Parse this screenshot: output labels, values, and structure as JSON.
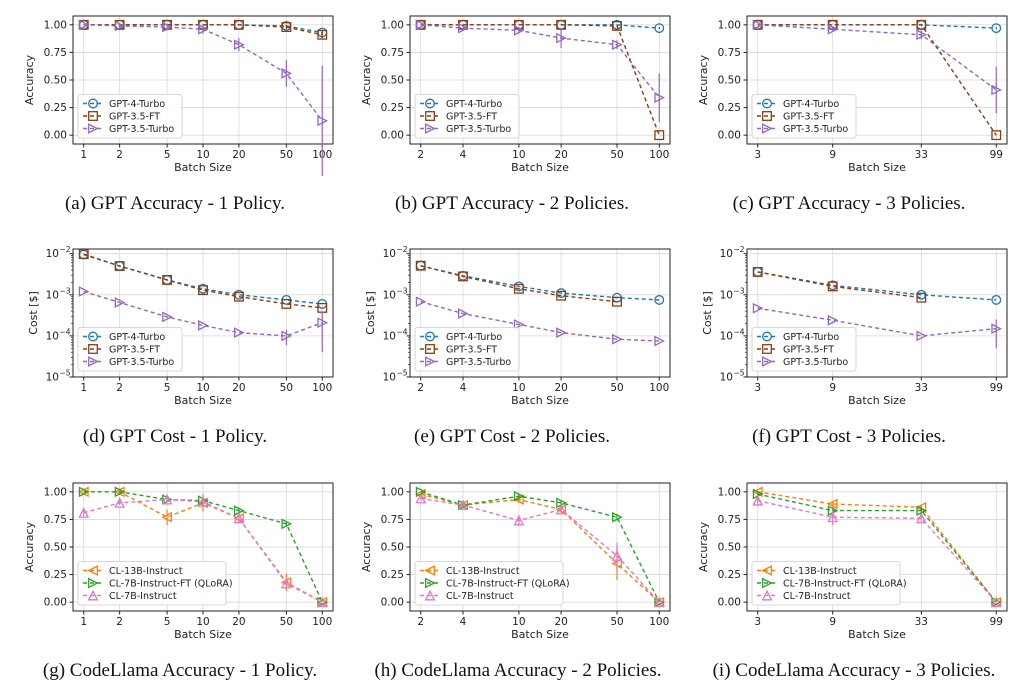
{
  "colors": {
    "gpt4": "#1f77b4",
    "gpt35ft": "#8c3d0f",
    "gpt35turbo": "#9467bd",
    "cl13b": "#ff7f0e",
    "cl7bft": "#2ca02c",
    "cl7b": "#e377c2"
  },
  "chart_data": [
    {
      "type": "line",
      "id": "a",
      "caption": "(a) GPT Accuracy - 1 Policy.",
      "xlabel": "Batch Size",
      "ylabel": "Accuracy",
      "x": [
        1,
        2,
        5,
        10,
        20,
        50,
        100
      ],
      "xticks": [
        "1",
        "2",
        "5",
        "10",
        "20",
        "50",
        "100"
      ],
      "yscale": "linear",
      "ylim": [
        -0.08,
        1.08
      ],
      "yticks": [
        "0.00",
        "0.25",
        "0.50",
        "0.75",
        "1.00"
      ],
      "grid": true,
      "legend_position": "lower-left",
      "series": [
        {
          "name": "GPT-4-Turbo",
          "color": "#1f77b4",
          "marker": "circle",
          "values": [
            1.0,
            1.0,
            1.0,
            1.0,
            1.0,
            0.99,
            0.93
          ],
          "errors": [
            0,
            0,
            0,
            0,
            0,
            0.01,
            0.02
          ]
        },
        {
          "name": "GPT-3.5-FT",
          "color": "#8c3d0f",
          "marker": "square",
          "values": [
            1.0,
            1.0,
            1.0,
            1.0,
            1.0,
            0.98,
            0.91
          ],
          "errors": [
            0,
            0,
            0,
            0,
            0,
            0.02,
            0.03
          ]
        },
        {
          "name": "GPT-3.5-Turbo",
          "color": "#9467bd",
          "marker": "triangle-right",
          "values": [
            1.0,
            0.99,
            0.98,
            0.96,
            0.82,
            0.56,
            0.13
          ],
          "errors": [
            0,
            0.02,
            0.03,
            0.04,
            0.06,
            0.12,
            0.5
          ]
        }
      ]
    },
    {
      "type": "line",
      "id": "b",
      "caption": "(b) GPT Accuracy - 2 Policies.",
      "xlabel": "Batch Size",
      "ylabel": "Accuracy",
      "x": [
        2,
        4,
        10,
        20,
        50,
        100
      ],
      "xticks": [
        "2",
        "4",
        "10",
        "20",
        "50",
        "100"
      ],
      "yscale": "linear",
      "ylim": [
        -0.08,
        1.08
      ],
      "yticks": [
        "0.00",
        "0.25",
        "0.50",
        "0.75",
        "1.00"
      ],
      "grid": true,
      "legend_position": "lower-left",
      "series": [
        {
          "name": "GPT-4-Turbo",
          "color": "#1f77b4",
          "marker": "circle",
          "values": [
            1.0,
            1.0,
            1.0,
            1.0,
            1.0,
            0.97
          ],
          "errors": [
            0,
            0,
            0,
            0,
            0,
            0.01
          ]
        },
        {
          "name": "GPT-3.5-FT",
          "color": "#8c3d0f",
          "marker": "square",
          "values": [
            1.0,
            1.0,
            1.0,
            1.0,
            0.99,
            0.0
          ],
          "errors": [
            0,
            0,
            0,
            0,
            0.01,
            0
          ]
        },
        {
          "name": "GPT-3.5-Turbo",
          "color": "#9467bd",
          "marker": "triangle-right",
          "values": [
            1.0,
            0.97,
            0.95,
            0.88,
            0.82,
            0.34
          ],
          "errors": [
            0,
            0.02,
            0.03,
            0.09,
            0.04,
            0.22
          ]
        }
      ]
    },
    {
      "type": "line",
      "id": "c",
      "caption": "(c) GPT Accuracy - 3 Policies.",
      "xlabel": "Batch Size",
      "ylabel": "Accuracy",
      "x": [
        3,
        9,
        33,
        99
      ],
      "xticks": [
        "3",
        "9",
        "33",
        "99"
      ],
      "yscale": "linear",
      "ylim": [
        -0.08,
        1.08
      ],
      "yticks": [
        "0.00",
        "0.25",
        "0.50",
        "0.75",
        "1.00"
      ],
      "grid": true,
      "legend_position": "lower-left",
      "series": [
        {
          "name": "GPT-4-Turbo",
          "color": "#1f77b4",
          "marker": "circle",
          "values": [
            1.0,
            1.0,
            1.0,
            0.97
          ],
          "errors": [
            0,
            0,
            0,
            0.01
          ]
        },
        {
          "name": "GPT-3.5-FT",
          "color": "#8c3d0f",
          "marker": "square",
          "values": [
            1.0,
            1.0,
            1.0,
            0.0
          ],
          "errors": [
            0,
            0,
            0,
            0
          ]
        },
        {
          "name": "GPT-3.5-Turbo",
          "color": "#9467bd",
          "marker": "triangle-right",
          "values": [
            1.0,
            0.96,
            0.91,
            0.41
          ],
          "errors": [
            0,
            0.02,
            0.04,
            0.21
          ]
        }
      ]
    },
    {
      "type": "line",
      "id": "d",
      "caption": "(d) GPT Cost - 1 Policy.",
      "xlabel": "Batch Size",
      "ylabel": "Cost [$]",
      "x": [
        1,
        2,
        5,
        10,
        20,
        50,
        100
      ],
      "xticks": [
        "1",
        "2",
        "5",
        "10",
        "20",
        "50",
        "100"
      ],
      "yscale": "log",
      "ylim": [
        1e-05,
        0.013
      ],
      "yticks_exp": [
        -5,
        -4,
        -3,
        -2
      ],
      "grid": true,
      "legend_position": "lower-left",
      "series": [
        {
          "name": "GPT-4-Turbo",
          "color": "#1f77b4",
          "marker": "circle",
          "values": [
            0.0095,
            0.005,
            0.0023,
            0.0014,
            0.001,
            0.00075,
            0.0006
          ],
          "errors": [
            0,
            0,
            0,
            0,
            0,
            0,
            0
          ]
        },
        {
          "name": "GPT-3.5-FT",
          "color": "#8c3d0f",
          "marker": "square",
          "values": [
            0.0098,
            0.005,
            0.0023,
            0.0013,
            0.0009,
            0.0006,
            0.00048
          ],
          "errors": [
            0,
            0,
            0,
            0,
            0,
            0,
            0
          ]
        },
        {
          "name": "GPT-3.5-Turbo",
          "color": "#9467bd",
          "marker": "triangle-right",
          "values": [
            0.0012,
            0.00065,
            0.00029,
            0.00018,
            0.00012,
            0.0001,
            0.00021
          ],
          "errors": [
            0,
            0,
            0,
            0,
            0,
            4e-05,
            0.00017
          ]
        }
      ]
    },
    {
      "type": "line",
      "id": "e",
      "caption": "(e) GPT Cost - 2 Policies.",
      "xlabel": "Batch Size",
      "ylabel": "Cost [$]",
      "x": [
        2,
        4,
        10,
        20,
        50,
        100
      ],
      "xticks": [
        "2",
        "4",
        "10",
        "20",
        "50",
        "100"
      ],
      "yscale": "log",
      "ylim": [
        1e-05,
        0.013
      ],
      "yticks_exp": [
        -5,
        -4,
        -3,
        -2
      ],
      "grid": true,
      "legend_position": "lower-left",
      "series": [
        {
          "name": "GPT-4-Turbo",
          "color": "#1f77b4",
          "marker": "circle",
          "values": [
            0.0051,
            0.0029,
            0.0016,
            0.0011,
            0.00085,
            0.00075
          ],
          "errors": [
            0,
            0,
            0,
            0,
            0,
            0
          ]
        },
        {
          "name": "GPT-3.5-FT",
          "color": "#8c3d0f",
          "marker": "square",
          "values": [
            0.0051,
            0.0028,
            0.0014,
            0.00095,
            0.00068,
            0
          ],
          "errors": [
            0,
            0,
            0,
            0,
            0,
            0
          ]
        },
        {
          "name": "GPT-3.5-Turbo",
          "color": "#9467bd",
          "marker": "triangle-right",
          "values": [
            0.00068,
            0.00035,
            0.00019,
            0.00012,
            8.3e-05,
            7.5e-05
          ],
          "errors": [
            0,
            0,
            0,
            0,
            0,
            0
          ]
        }
      ]
    },
    {
      "type": "line",
      "id": "f",
      "caption": "(f) GPT Cost - 3 Policies.",
      "xlabel": "Batch Size",
      "ylabel": "Cost [$]",
      "x": [
        3,
        9,
        33,
        99
      ],
      "xticks": [
        "3",
        "9",
        "33",
        "99"
      ],
      "yscale": "log",
      "ylim": [
        1e-05,
        0.013
      ],
      "yticks_exp": [
        -5,
        -4,
        -3,
        -2
      ],
      "grid": true,
      "legend_position": "lower-left",
      "series": [
        {
          "name": "GPT-4-Turbo",
          "color": "#1f77b4",
          "marker": "circle",
          "values": [
            0.0036,
            0.0017,
            0.001,
            0.00075
          ],
          "errors": [
            0,
            0,
            0,
            0
          ]
        },
        {
          "name": "GPT-3.5-FT",
          "color": "#8c3d0f",
          "marker": "square",
          "values": [
            0.0036,
            0.0016,
            0.00085,
            0
          ],
          "errors": [
            0,
            0,
            0,
            0
          ]
        },
        {
          "name": "GPT-3.5-Turbo",
          "color": "#9467bd",
          "marker": "triangle-right",
          "values": [
            0.00047,
            0.00024,
            0.0001,
            0.00015
          ],
          "errors": [
            0,
            0,
            0,
            0.0001
          ]
        }
      ]
    },
    {
      "type": "line",
      "id": "g",
      "caption": "(g) CodeLlama Accuracy - 1 Policy.",
      "xlabel": "Batch Size",
      "ylabel": "Accuracy",
      "x": [
        1,
        2,
        5,
        10,
        20,
        50,
        100
      ],
      "xticks": [
        "1",
        "2",
        "5",
        "10",
        "20",
        "50",
        "100"
      ],
      "yscale": "linear",
      "ylim": [
        -0.08,
        1.08
      ],
      "yticks": [
        "0.00",
        "0.25",
        "0.50",
        "0.75",
        "1.00"
      ],
      "grid": true,
      "legend_position": "lower-left",
      "series": [
        {
          "name": "CL-13B-Instruct",
          "color": "#ff7f0e",
          "marker": "triangle-left",
          "values": [
            1.0,
            1.0,
            0.77,
            0.9,
            0.76,
            0.18,
            0.0
          ],
          "errors": [
            0,
            0.01,
            0.07,
            0.08,
            0.03,
            0.08,
            0
          ]
        },
        {
          "name": "CL-7B-Instruct-FT (QLoRA)",
          "color": "#2ca02c",
          "marker": "triangle-right",
          "values": [
            1.0,
            1.0,
            0.93,
            0.92,
            0.83,
            0.71,
            0.0
          ],
          "errors": [
            0,
            0,
            0.02,
            0.02,
            0.03,
            0.02,
            0
          ]
        },
        {
          "name": "CL-7B-Instruct",
          "color": "#e377c2",
          "marker": "triangle-up",
          "values": [
            0.81,
            0.9,
            0.93,
            0.91,
            0.76,
            0.17,
            0.0
          ],
          "errors": [
            0.03,
            0.02,
            0.02,
            0.02,
            0.03,
            0.05,
            0
          ]
        }
      ]
    },
    {
      "type": "line",
      "id": "h",
      "caption": "(h) CodeLlama Accuracy - 2 Policies.",
      "xlabel": "Batch Size",
      "ylabel": "Accuracy",
      "x": [
        2,
        4,
        10,
        20,
        50,
        100
      ],
      "xticks": [
        "2",
        "4",
        "10",
        "20",
        "50",
        "100"
      ],
      "yscale": "linear",
      "ylim": [
        -0.08,
        1.08
      ],
      "yticks": [
        "0.00",
        "0.25",
        "0.50",
        "0.75",
        "1.00"
      ],
      "grid": true,
      "legend_position": "lower-left",
      "series": [
        {
          "name": "CL-13B-Instruct",
          "color": "#ff7f0e",
          "marker": "triangle-left",
          "values": [
            0.98,
            0.88,
            0.93,
            0.84,
            0.35,
            0.0
          ],
          "errors": [
            0.01,
            0.02,
            0.03,
            0.03,
            0.15,
            0
          ]
        },
        {
          "name": "CL-7B-Instruct-FT (QLoRA)",
          "color": "#2ca02c",
          "marker": "triangle-right",
          "values": [
            1.0,
            0.88,
            0.96,
            0.9,
            0.77,
            0.0
          ],
          "errors": [
            0,
            0.02,
            0.02,
            0.02,
            0.03,
            0
          ]
        },
        {
          "name": "CL-7B-Instruct",
          "color": "#e377c2",
          "marker": "triangle-up",
          "values": [
            0.94,
            0.88,
            0.74,
            0.84,
            0.42,
            0.0
          ],
          "errors": [
            0.02,
            0.02,
            0.05,
            0.03,
            0.12,
            0
          ]
        }
      ]
    },
    {
      "type": "line",
      "id": "i",
      "caption": "(i) CodeLlama Accuracy - 3 Policies.",
      "xlabel": "Batch Size",
      "ylabel": "Accuracy",
      "x": [
        3,
        9,
        33,
        99
      ],
      "xticks": [
        "3",
        "9",
        "33",
        "99"
      ],
      "yscale": "linear",
      "ylim": [
        -0.08,
        1.08
      ],
      "yticks": [
        "0.00",
        "0.25",
        "0.50",
        "0.75",
        "1.00"
      ],
      "grid": true,
      "legend_position": "lower-left",
      "series": [
        {
          "name": "CL-13B-Instruct",
          "color": "#ff7f0e",
          "marker": "triangle-left",
          "values": [
            1.0,
            0.89,
            0.86,
            0.0
          ],
          "errors": [
            0.01,
            0.02,
            0.02,
            0
          ]
        },
        {
          "name": "CL-7B-Instruct-FT (QLoRA)",
          "color": "#2ca02c",
          "marker": "triangle-right",
          "values": [
            0.98,
            0.83,
            0.83,
            0.0
          ],
          "errors": [
            0.01,
            0.03,
            0.03,
            0
          ]
        },
        {
          "name": "CL-7B-Instruct",
          "color": "#e377c2",
          "marker": "triangle-up",
          "values": [
            0.92,
            0.77,
            0.76,
            0.0
          ],
          "errors": [
            0.03,
            0.07,
            0.03,
            0
          ]
        }
      ]
    }
  ]
}
